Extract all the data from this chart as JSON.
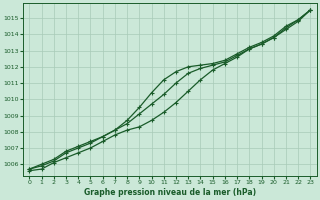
{
  "title": "Graphe pression niveau de la mer (hPa)",
  "background_color": "#cbe8d8",
  "grid_color": "#a8cbb8",
  "line_color": "#1a5c2a",
  "xlim": [
    -0.5,
    23.5
  ],
  "ylim": [
    1005.3,
    1015.9
  ],
  "yticks": [
    1006,
    1007,
    1008,
    1009,
    1010,
    1011,
    1012,
    1013,
    1014,
    1015
  ],
  "xticks": [
    0,
    1,
    2,
    3,
    4,
    5,
    6,
    7,
    8,
    9,
    10,
    11,
    12,
    13,
    14,
    15,
    16,
    17,
    18,
    19,
    20,
    21,
    22,
    23
  ],
  "series1_x": [
    0,
    1,
    2,
    3,
    4,
    5,
    6,
    7,
    8,
    9,
    10,
    11,
    12,
    13,
    14,
    15,
    16,
    17,
    18,
    19,
    20,
    21,
    22,
    23
  ],
  "series1_y": [
    1005.7,
    1006.0,
    1006.3,
    1006.8,
    1007.1,
    1007.4,
    1007.7,
    1008.1,
    1008.5,
    1009.1,
    1009.7,
    1010.3,
    1011.0,
    1011.6,
    1011.9,
    1012.1,
    1012.3,
    1012.7,
    1013.1,
    1013.4,
    1013.8,
    1014.3,
    1014.8,
    1015.5
  ],
  "series2_x": [
    0,
    1,
    2,
    3,
    4,
    5,
    6,
    7,
    8,
    9,
    10,
    11,
    12,
    13,
    14,
    15,
    16,
    17,
    18,
    19,
    20,
    21,
    22,
    23
  ],
  "series2_y": [
    1005.7,
    1005.9,
    1006.2,
    1006.7,
    1007.0,
    1007.3,
    1007.7,
    1008.1,
    1008.7,
    1009.5,
    1010.4,
    1011.2,
    1011.7,
    1012.0,
    1012.1,
    1012.2,
    1012.4,
    1012.8,
    1013.2,
    1013.5,
    1013.9,
    1014.5,
    1014.9,
    1015.5
  ],
  "series3_x": [
    0,
    1,
    2,
    3,
    4,
    5,
    6,
    7,
    8,
    9,
    10,
    11,
    12,
    13,
    14,
    15,
    16,
    17,
    18,
    19,
    20,
    21,
    22,
    23
  ],
  "series3_y": [
    1005.6,
    1005.7,
    1006.1,
    1006.4,
    1006.7,
    1007.0,
    1007.4,
    1007.8,
    1008.1,
    1008.3,
    1008.7,
    1009.2,
    1009.8,
    1010.5,
    1011.2,
    1011.8,
    1012.2,
    1012.6,
    1013.1,
    1013.4,
    1013.8,
    1014.4,
    1014.9,
    1015.5
  ]
}
